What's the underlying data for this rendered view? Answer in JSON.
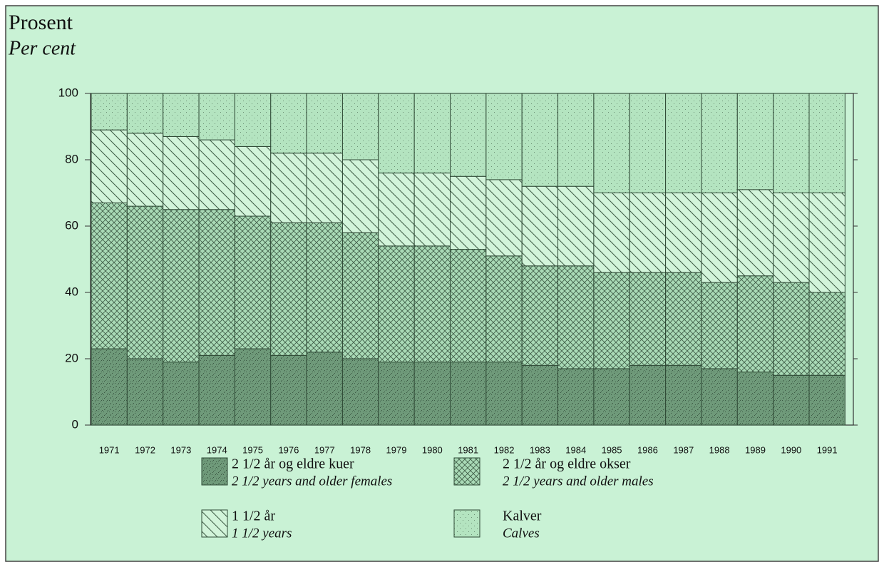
{
  "chart_data": {
    "type": "stacked_bar",
    "ylabel": "Prosent",
    "ylabel_en": "Per cent",
    "categories": [
      "1971",
      "1972",
      "1973",
      "1974",
      "1975",
      "1976",
      "1977",
      "1978",
      "1979",
      "1980",
      "1981",
      "1982",
      "1983",
      "1984",
      "1985",
      "1986",
      "1987",
      "1988",
      "1989",
      "1990",
      "1991"
    ],
    "series": [
      {
        "name": "2 1/2 år og eldre kuer",
        "name_en": "2 1/2 years and older females",
        "color": "#6f9a7a",
        "pattern": "stipple",
        "values": [
          23,
          20,
          19,
          21,
          23,
          21,
          22,
          20,
          19,
          19,
          19,
          19,
          18,
          17,
          17,
          18,
          18,
          17,
          16,
          15,
          15
        ]
      },
      {
        "name": "2 1/2 år og eldre okser",
        "name_en": "2 1/2 years and older males",
        "color": "#a9dab6",
        "pattern": "crosshatch",
        "values": [
          44,
          46,
          46,
          44,
          40,
          40,
          39,
          38,
          35,
          35,
          34,
          32,
          30,
          31,
          29,
          28,
          28,
          26,
          29,
          28,
          25
        ]
      },
      {
        "name": "1 1/2 år",
        "name_en": "1 1/2 years",
        "color": "#d2f4da",
        "pattern": "diagonal",
        "values": [
          22,
          22,
          22,
          21,
          21,
          21,
          21,
          22,
          22,
          22,
          22,
          23,
          24,
          24,
          24,
          24,
          24,
          27,
          26,
          27,
          30
        ]
      },
      {
        "name": "Kalver",
        "name_en": "Calves",
        "color": "#b4e4c0",
        "pattern": "dots",
        "values": [
          11,
          12,
          13,
          14,
          16,
          18,
          18,
          20,
          24,
          24,
          25,
          26,
          28,
          28,
          30,
          30,
          30,
          30,
          29,
          30,
          30
        ]
      }
    ],
    "ylim": [
      0,
      100
    ],
    "yticks": [
      0,
      20,
      40,
      60,
      80,
      100
    ]
  }
}
